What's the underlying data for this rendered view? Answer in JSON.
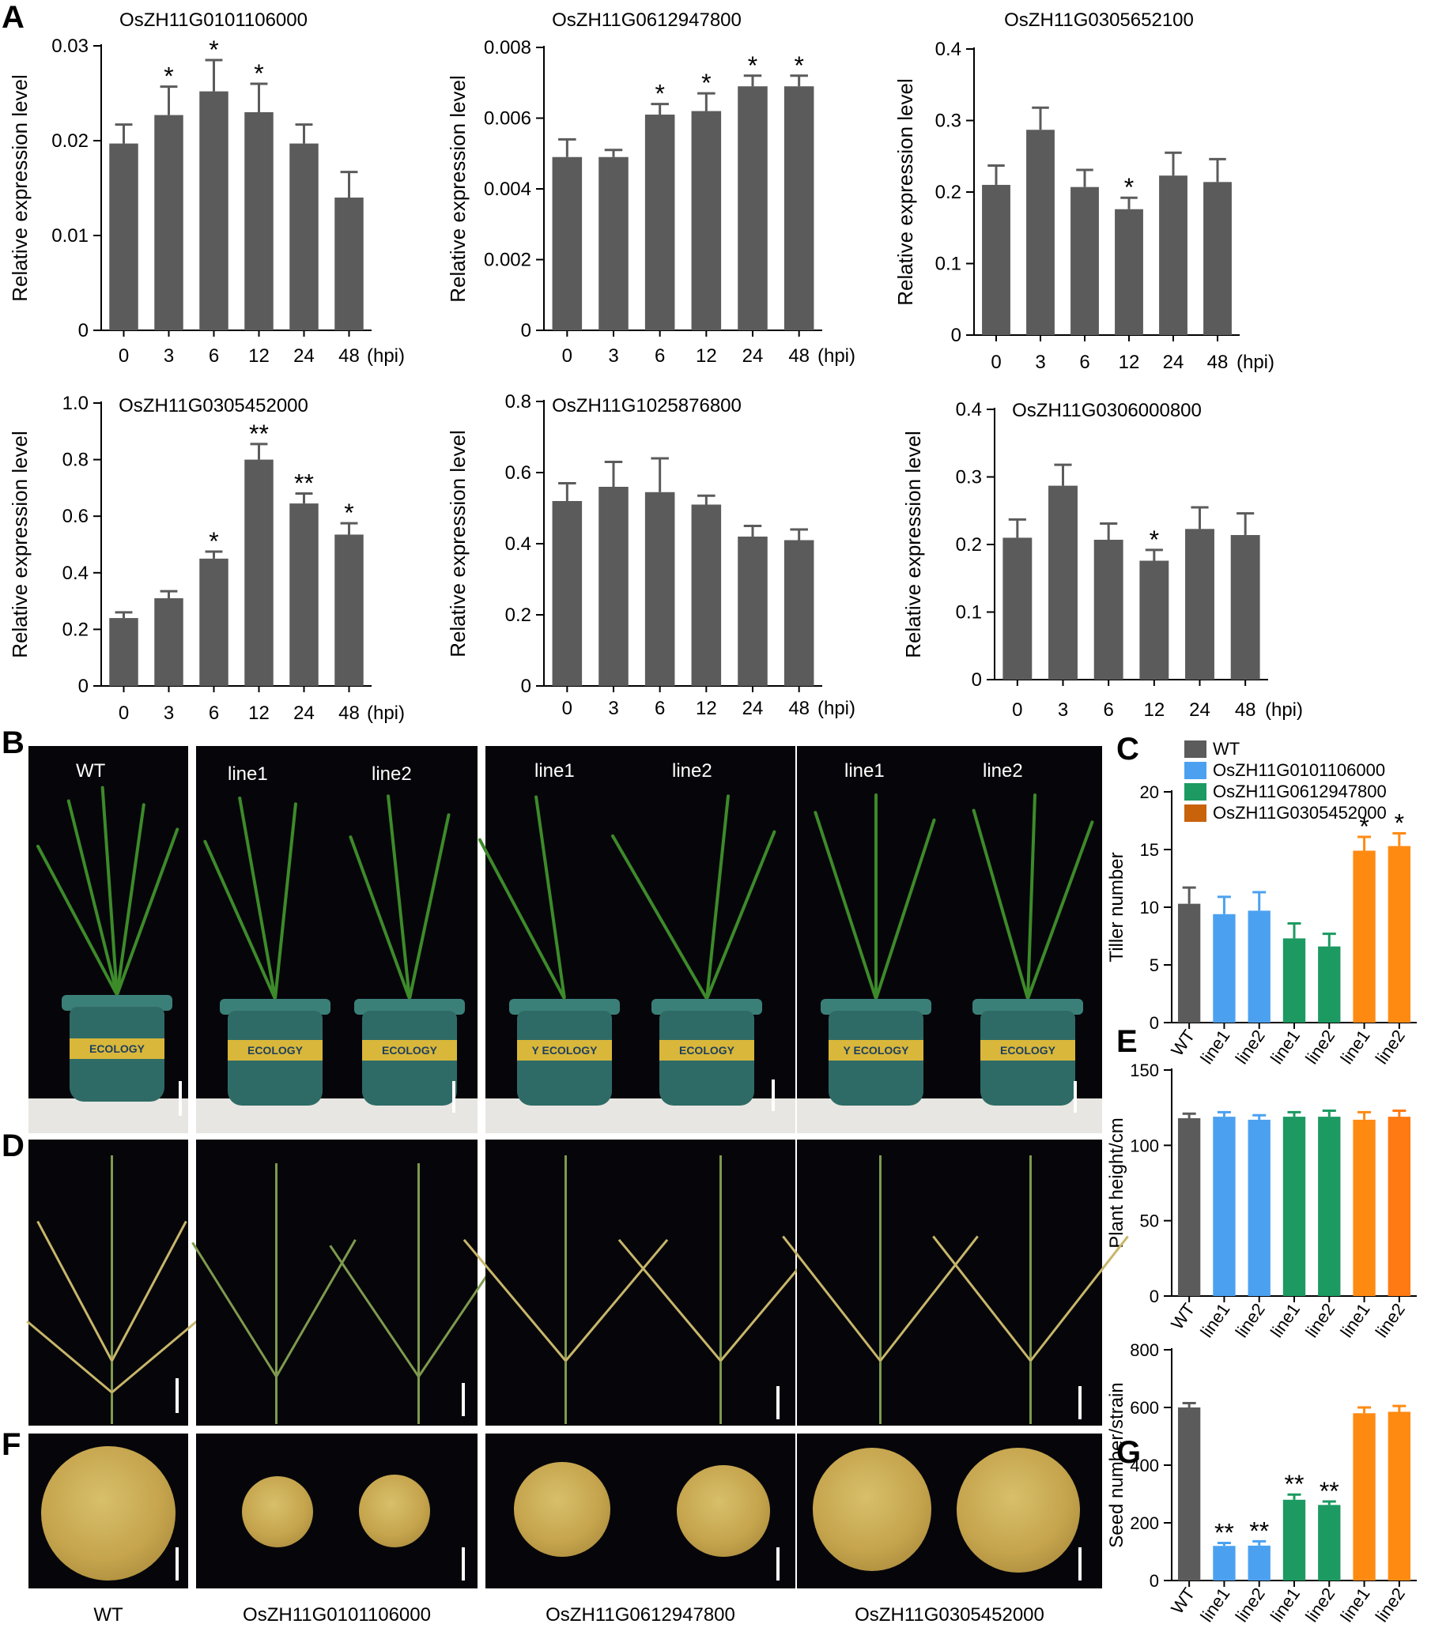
{
  "panel_letters": {
    "a": "A",
    "b": "B",
    "c": "C",
    "d": "D",
    "e": "E",
    "f": "F",
    "g": "G"
  },
  "bar_color": "#5b5b5b",
  "chart_data": [
    {
      "type": "bar",
      "title": "OsZH11G0101106000",
      "ylabel": "Relative expression level",
      "categories": [
        "0",
        "3",
        "6",
        "12",
        "24",
        "48"
      ],
      "unit_label": "(hpi)",
      "values": [
        0.0197,
        0.0227,
        0.0252,
        0.023,
        0.0197,
        0.014
      ],
      "errors": [
        0.002,
        0.003,
        0.0033,
        0.003,
        0.002,
        0.0027
      ],
      "significance": [
        "",
        "*",
        "*",
        "*",
        "",
        ""
      ],
      "ylim": [
        0,
        0.03
      ],
      "yticks": [
        0,
        0.01,
        0.02,
        0.03
      ],
      "ytick_labels": [
        "0",
        "0.01",
        "0.02",
        "0.03"
      ]
    },
    {
      "type": "bar",
      "title": "OsZH11G0612947800",
      "ylabel": "Relative expression level",
      "categories": [
        "0",
        "3",
        "6",
        "12",
        "24",
        "48"
      ],
      "unit_label": "(hpi)",
      "values": [
        0.0049,
        0.0049,
        0.0061,
        0.0062,
        0.0069,
        0.0069
      ],
      "errors": [
        0.0005,
        0.0002,
        0.0003,
        0.0005,
        0.0003,
        0.0003
      ],
      "significance": [
        "",
        "",
        "*",
        "*",
        "*",
        "*"
      ],
      "ylim": [
        0,
        0.008
      ],
      "yticks": [
        0,
        0.002,
        0.004,
        0.006,
        0.008
      ],
      "ytick_labels": [
        "0",
        "0.002",
        "0.004",
        "0.006",
        "0.008"
      ]
    },
    {
      "type": "bar",
      "title": "OsZH11G0305652100",
      "ylabel": "Relative expression level",
      "categories": [
        "0",
        "3",
        "6",
        "12",
        "24",
        "48"
      ],
      "unit_label": "(hpi)",
      "values": [
        0.21,
        0.287,
        0.207,
        0.176,
        0.223,
        0.214
      ],
      "errors": [
        0.027,
        0.031,
        0.024,
        0.016,
        0.032,
        0.032
      ],
      "significance": [
        "",
        "",
        "",
        "*",
        "",
        ""
      ],
      "ylim": [
        0,
        0.4
      ],
      "yticks": [
        0,
        0.1,
        0.2,
        0.3,
        0.4
      ],
      "ytick_labels": [
        "0",
        "0.1",
        "0.2",
        "0.3",
        "0.4"
      ]
    },
    {
      "type": "bar",
      "title": "OsZH11G0305452000",
      "ylabel": "Relative expression level",
      "categories": [
        "0",
        "3",
        "6",
        "12",
        "24",
        "48"
      ],
      "unit_label": "(hpi)",
      "values": [
        0.24,
        0.31,
        0.45,
        0.8,
        0.645,
        0.535
      ],
      "errors": [
        0.02,
        0.025,
        0.025,
        0.055,
        0.035,
        0.04
      ],
      "significance": [
        "",
        "",
        "*",
        "**",
        "**",
        "*"
      ],
      "ylim": [
        0,
        1.0
      ],
      "yticks": [
        0,
        0.2,
        0.4,
        0.6,
        0.8,
        1.0
      ],
      "ytick_labels": [
        "0",
        "0.2",
        "0.4",
        "0.6",
        "0.8",
        "1.0"
      ]
    },
    {
      "type": "bar",
      "title": "OsZH11G1025876800",
      "ylabel": "Relative expression level",
      "categories": [
        "0",
        "3",
        "6",
        "12",
        "24",
        "48"
      ],
      "unit_label": "(hpi)",
      "values": [
        0.52,
        0.56,
        0.545,
        0.51,
        0.42,
        0.41
      ],
      "errors": [
        0.05,
        0.07,
        0.095,
        0.025,
        0.03,
        0.03
      ],
      "significance": [
        "",
        "",
        "",
        "",
        "",
        ""
      ],
      "ylim": [
        0,
        0.8
      ],
      "yticks": [
        0,
        0.2,
        0.4,
        0.6,
        0.8
      ],
      "ytick_labels": [
        "0",
        "0.2",
        "0.4",
        "0.6",
        "0.8"
      ]
    },
    {
      "type": "bar",
      "title": "OsZH11G0306000800",
      "ylabel": "Relative expression level",
      "categories": [
        "0",
        "3",
        "6",
        "12",
        "24",
        "48"
      ],
      "unit_label": "(hpi)",
      "values": [
        0.21,
        0.287,
        0.207,
        0.176,
        0.223,
        0.214
      ],
      "errors": [
        0.027,
        0.031,
        0.024,
        0.016,
        0.032,
        0.032
      ],
      "significance": [
        "",
        "",
        "",
        "*",
        "",
        ""
      ],
      "ylim": [
        0,
        0.4
      ],
      "yticks": [
        0,
        0.1,
        0.2,
        0.3,
        0.4
      ],
      "ytick_labels": [
        "0",
        "0.1",
        "0.2",
        "0.3",
        "0.4"
      ]
    },
    {
      "type": "bar",
      "ylabel": "Tiller number",
      "categories": [
        "WT",
        "line1",
        "line2",
        "line1",
        "line2",
        "line1",
        "line2"
      ],
      "values": [
        10.3,
        9.4,
        9.7,
        7.3,
        6.6,
        14.9,
        15.3
      ],
      "errors": [
        1.4,
        1.5,
        1.6,
        1.3,
        1.1,
        1.2,
        1.1
      ],
      "significance": [
        "",
        "",
        "",
        "",
        "",
        "*",
        "*"
      ],
      "colors": [
        "#5b5b5b",
        "#4ba1f0",
        "#4ba1f0",
        "#1c9a61",
        "#1c9a61",
        "#ff8a12",
        "#ff8a12"
      ],
      "ylim": [
        0,
        20
      ],
      "yticks": [
        0,
        5,
        10,
        15,
        20
      ],
      "ytick_labels": [
        "0",
        "5",
        "10",
        "15",
        "20"
      ],
      "legend": [
        {
          "label": "WT",
          "color": "#5b5b5b"
        },
        {
          "label": "OsZH11G0101106000",
          "color": "#4ba1f0"
        },
        {
          "label": "OsZH11G0612947800",
          "color": "#1c9a61"
        },
        {
          "label": "OsZH11G0305452000",
          "color": "#c8630c"
        }
      ]
    },
    {
      "type": "bar",
      "ylabel": "Plant height/cm",
      "categories": [
        "WT",
        "line1",
        "line2",
        "line1",
        "line2",
        "line1",
        "line2"
      ],
      "values": [
        118,
        119,
        117,
        119,
        119,
        117,
        119
      ],
      "errors": [
        3,
        3,
        3,
        3,
        4,
        5,
        4
      ],
      "significance": [
        "",
        "",
        "",
        "",
        "",
        "",
        ""
      ],
      "colors": [
        "#5b5b5b",
        "#4ba1f0",
        "#4ba1f0",
        "#1c9a61",
        "#1c9a61",
        "#ff8a12",
        "#ff7a12"
      ],
      "ylim": [
        0,
        150
      ],
      "yticks": [
        0,
        50,
        100,
        150
      ],
      "ytick_labels": [
        "0",
        "50",
        "100",
        "150"
      ]
    },
    {
      "type": "bar",
      "ylabel": "Seed number/strain",
      "categories": [
        "WT",
        "line1",
        "line2",
        "line1",
        "line2",
        "line1",
        "line2"
      ],
      "values": [
        600,
        120,
        121,
        280,
        262,
        580,
        585
      ],
      "errors": [
        15,
        10,
        15,
        18,
        12,
        20,
        20
      ],
      "significance": [
        "",
        "**",
        "**",
        "**",
        "**",
        "",
        ""
      ],
      "colors": [
        "#5b5b5b",
        "#4ba1f0",
        "#4ba1f0",
        "#1c9a61",
        "#1c9a61",
        "#ff8a12",
        "#ff8a12"
      ],
      "ylim": [
        0,
        800
      ],
      "yticks": [
        0,
        200,
        400,
        600,
        800
      ],
      "ytick_labels": [
        "0",
        "200",
        "400",
        "600",
        "800"
      ]
    }
  ],
  "photos": {
    "group_labels": [
      "WT",
      "line1",
      "line2",
      "line1",
      "line2",
      "line1",
      "line2"
    ],
    "pot_text": [
      "ECOLOGY",
      "ECOLOGY",
      "ECOLOGY",
      "Y ECOLOGY",
      "ECOLOGY",
      "Y ECOLOGY",
      "ECOLOGY"
    ],
    "bottom_labels": [
      "WT",
      "OsZH11G0101106000",
      "OsZH11G0612947800",
      "OsZH11G0305452000"
    ]
  }
}
